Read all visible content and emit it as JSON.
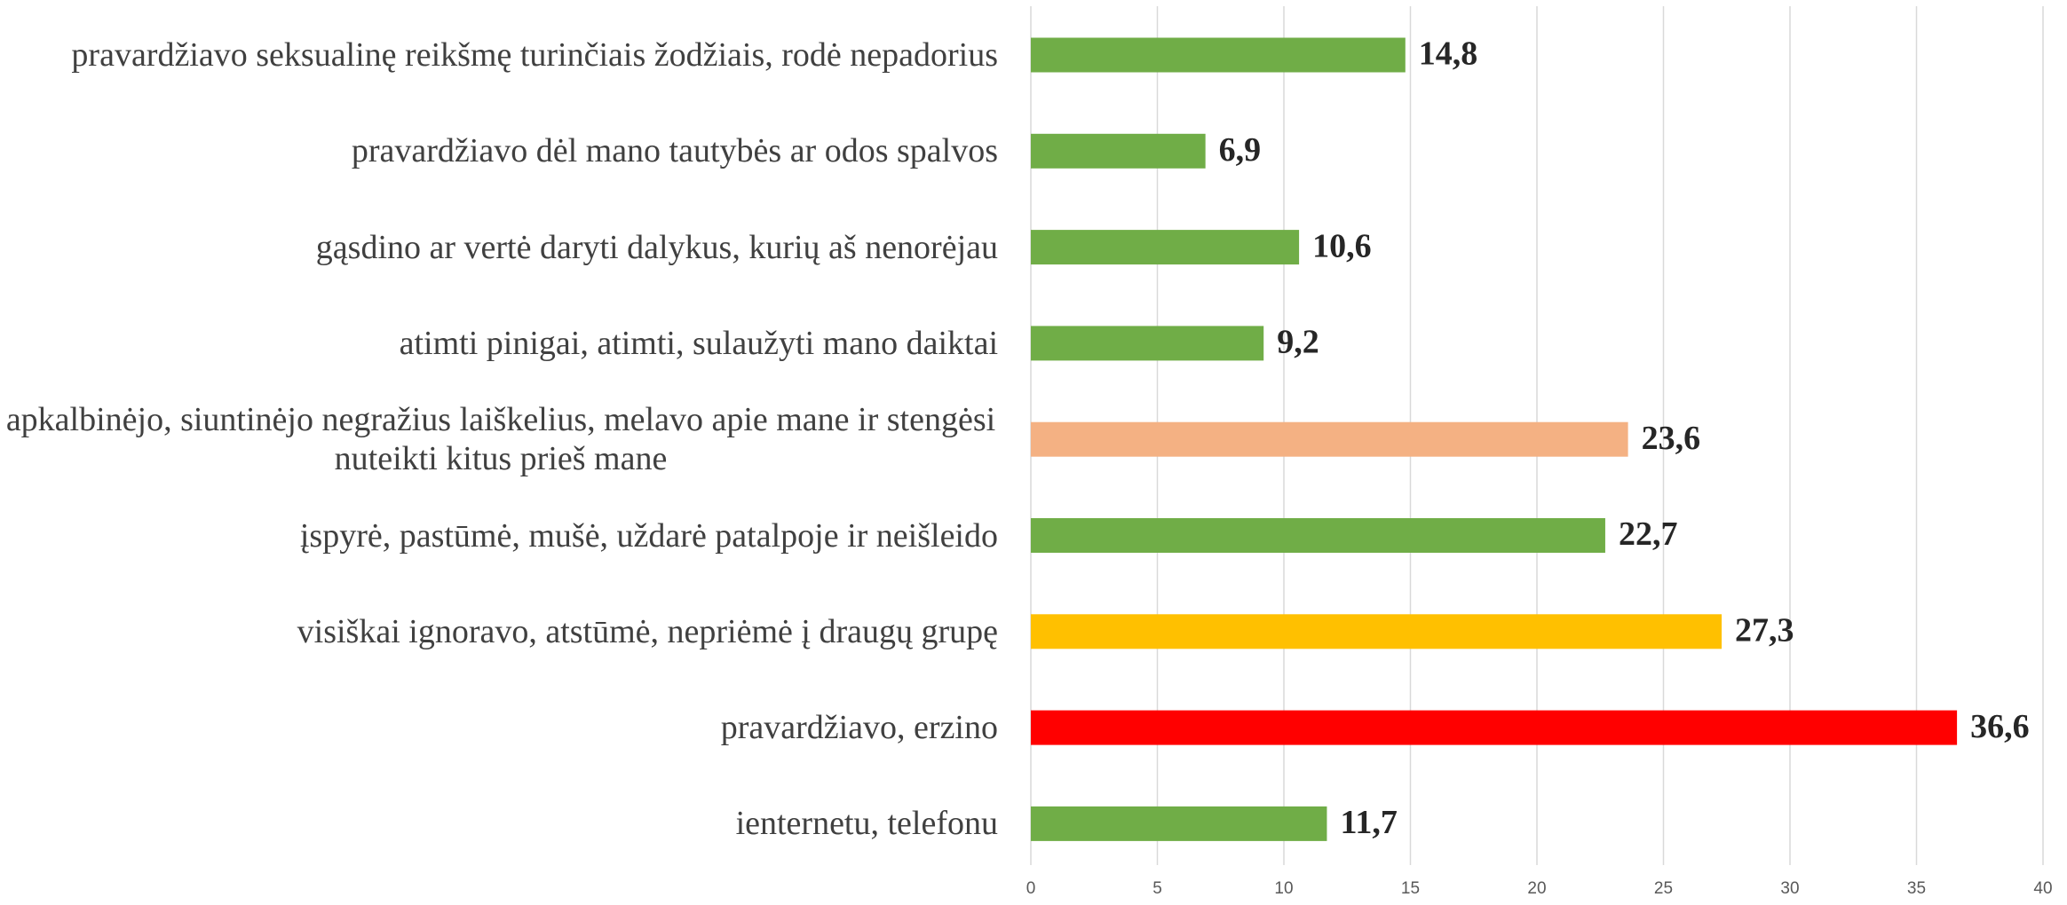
{
  "chart_data": {
    "type": "bar",
    "orientation": "horizontal",
    "categories": [
      "pravardžiavo seksualinę reikšmę turinčiais žodžiais, rodė nepadorius",
      "pravardžiavo dėl mano tautybės ar odos spalvos",
      "gąsdino ar vertė daryti dalykus, kurių aš nenorėjau",
      "atimti pinigai, atimti, sulaužyti mano daiktai",
      "apkalbinėjo, siuntinėjo negražius laiškelius, melavo apie mane ir stengėsi nuteikti kitus prieš mane",
      "įspyrė, pastūmė, mušė, uždarė patalpoje ir neišleido",
      "visiškai ignoravo, atstūmė, nepriėmė į draugų grupę",
      "pravardžiavo, erzino",
      "ienternetu, telefonu"
    ],
    "values": [
      14.8,
      6.9,
      10.6,
      9.2,
      23.6,
      22.7,
      27.3,
      36.6,
      11.7
    ],
    "value_labels": [
      "14,8",
      "6,9",
      "10,6",
      "9,2",
      "23,6",
      "22,7",
      "27,3",
      "36,6",
      "11,7"
    ],
    "colors": [
      "#70ad47",
      "#70ad47",
      "#70ad47",
      "#70ad47",
      "#f4b183",
      "#70ad47",
      "#ffc000",
      "#ff0000",
      "#70ad47"
    ],
    "xlim": [
      0,
      40
    ],
    "xticks": [
      0,
      5,
      10,
      15,
      20,
      25,
      30,
      35,
      40
    ],
    "grid": true
  }
}
